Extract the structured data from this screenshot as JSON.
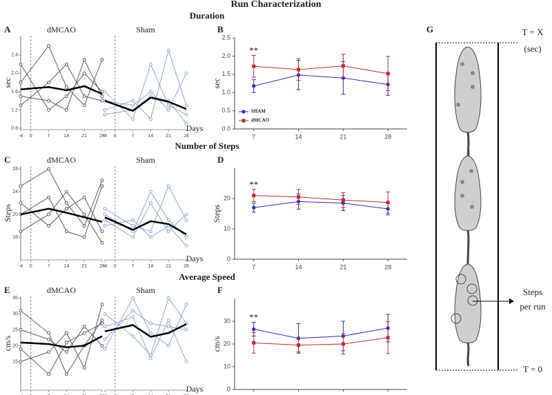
{
  "title": "Run Characterization",
  "sections": [
    "Duration",
    "Number of Steps",
    "Average Speed"
  ],
  "chart_data": [
    {
      "panel": "A",
      "type": "spaghetti",
      "ylabel": "sec",
      "xlabel": "Days",
      "x": [
        -4,
        7,
        14,
        21,
        28
      ],
      "xlim": [
        -4,
        28
      ],
      "xticks": [
        -4,
        0,
        7,
        14,
        21,
        28
      ],
      "ylim": [
        0.77,
        2.82
      ],
      "yticks": [
        0.8,
        1.2,
        1.6,
        {
          "value": 2,
          "label": "2.0"
        },
        2.4
      ],
      "groups": [
        {
          "name": "dMCAO",
          "color": "#5a5a66",
          "mean_color": "#000000",
          "mean": [
            1.65,
            1.7,
            1.63,
            1.72,
            1.55
          ],
          "series": [
            [
              2.2,
              1.2,
              1.5,
              2.0,
              1.6
            ],
            [
              1.8,
              2.6,
              1.7,
              1.3,
              2.3
            ],
            [
              1.3,
              1.8,
              2.2,
              1.5,
              1.4
            ],
            [
              1.5,
              1.4,
              1.2,
              2.3,
              1.5
            ]
          ]
        },
        {
          "name": "Sham",
          "color": "#8ea6d2",
          "mean_color": "#000000",
          "mean": [
            1.4,
            1.18,
            1.47,
            1.38,
            1.22
          ],
          "series": [
            [
              1.6,
              1.0,
              2.2,
              1.3,
              1.1
            ],
            [
              1.2,
              1.4,
              1.0,
              2.5,
              1.3
            ],
            [
              1.4,
              1.3,
              1.6,
              1.2,
              2.0
            ],
            [
              1.1,
              1.2,
              1.5,
              1.4,
              0.9
            ]
          ]
        }
      ]
    },
    {
      "panel": "B",
      "type": "errline",
      "ylabel": "sec",
      "x": [
        7,
        14,
        21,
        28
      ],
      "xlim": [
        4,
        31
      ],
      "xticks": [
        7,
        14,
        21,
        28
      ],
      "ylim": [
        0,
        2.5
      ],
      "yticks": [
        {
          "value": 0,
          "label": "0.0"
        },
        0.5,
        {
          "value": 1,
          "label": "1.0"
        },
        1.5,
        {
          "value": 2,
          "label": "2.0"
        },
        2.5
      ],
      "annotation": {
        "text": "**",
        "x": 7
      },
      "legend": true,
      "series": [
        {
          "name": "SHAM",
          "color": "#2b2bbf",
          "marker": "circle",
          "values": [
            1.18,
            1.48,
            1.4,
            1.22
          ],
          "errors": [
            0.18,
            0.4,
            0.45,
            0.3
          ]
        },
        {
          "name": "dMCAO",
          "color": "#c02a2a",
          "marker": "square",
          "values": [
            1.72,
            1.63,
            1.73,
            1.52
          ],
          "errors": [
            0.3,
            0.3,
            0.32,
            0.47
          ]
        }
      ]
    },
    {
      "panel": "C",
      "type": "spaghetti",
      "ylabel": "Steps",
      "xlabel": "Days",
      "x": [
        -4,
        7,
        14,
        21,
        28
      ],
      "xlim": [
        -4,
        28
      ],
      "xticks": [
        -4,
        0,
        7,
        14,
        21,
        28
      ],
      "ylim": [
        12,
        28.5
      ],
      "yticks": [
        16,
        20,
        24,
        28
      ],
      "groups": [
        {
          "name": "dMCAO",
          "color": "#5a5a66",
          "mean_color": "#000000",
          "mean": [
            20,
            21,
            20.3,
            19.5,
            18.7
          ],
          "series": [
            [
              25,
              28,
              22,
              18,
              26
            ],
            [
              22,
              18,
              21,
              23,
              17
            ],
            [
              20,
              23,
              17,
              16,
              25
            ],
            [
              17,
              20,
              24,
              20,
              15
            ]
          ]
        },
        {
          "name": "Sham",
          "color": "#8ea6d2",
          "mean_color": "#000000",
          "mean": [
            19.5,
            17.3,
            18.8,
            18.3,
            16.5
          ],
          "series": [
            [
              21,
              18,
              17,
              25,
              19
            ],
            [
              19,
              16,
              22,
              17,
              20
            ],
            [
              20,
              17,
              24,
              19,
              16
            ],
            [
              18,
              19,
              16,
              18,
              14.5
            ]
          ]
        }
      ]
    },
    {
      "panel": "D",
      "type": "errline",
      "ylabel": "Steps",
      "x": [
        7,
        14,
        21,
        28
      ],
      "xlim": [
        4,
        31
      ],
      "xticks": [
        7,
        14,
        21,
        28
      ],
      "ylim": [
        0,
        30
      ],
      "yticks": [
        0,
        10,
        20
      ],
      "annotation": {
        "text": "**",
        "x": 7
      },
      "legend": false,
      "series": [
        {
          "name": "SHAM",
          "color": "#2b2bbf",
          "marker": "circle",
          "values": [
            17,
            19,
            18.5,
            16.6
          ],
          "errors": [
            1.5,
            2.5,
            2.5,
            2
          ]
        },
        {
          "name": "dMCAO",
          "color": "#c02a2a",
          "marker": "square",
          "values": [
            21,
            20.5,
            19.5,
            18.7
          ],
          "errors": [
            2,
            2.5,
            2.5,
            3.5
          ]
        }
      ]
    },
    {
      "panel": "E",
      "type": "spaghetti",
      "ylabel": "cm/s",
      "xlabel": "Days",
      "x": [
        -4,
        7,
        14,
        21,
        28
      ],
      "xlim": [
        -4,
        28
      ],
      "xticks": [
        -4,
        0,
        7,
        14,
        21,
        28
      ],
      "ylim": [
        6,
        35.5
      ],
      "yticks": [
        15,
        20,
        25,
        30,
        35
      ],
      "groups": [
        {
          "name": "dMCAO",
          "color": "#5a5a66",
          "mean_color": "#000000",
          "mean": [
            21,
            20.5,
            19.5,
            20,
            23
          ],
          "series": [
            [
              31,
              24,
              11,
              20,
              28
            ],
            [
              15,
              18,
              24,
              13,
              33
            ],
            [
              25,
              22,
              18,
              26,
              20
            ],
            [
              19,
              11,
              21,
              24,
              27
            ]
          ]
        },
        {
          "name": "Sham",
          "color": "#8ea6d2",
          "mean_color": "#000000",
          "mean": [
            24.5,
            26.5,
            22.8,
            24,
            26.8
          ],
          "series": [
            [
              30,
              23,
              17,
              35,
              27
            ],
            [
              19,
              35,
              24,
              20,
              33
            ],
            [
              26,
              29,
              16,
              28,
              15
            ],
            [
              22,
              31,
              27,
              26,
              25
            ]
          ]
        }
      ]
    },
    {
      "panel": "F",
      "type": "errline",
      "ylabel": "cm/s",
      "x": [
        7,
        14,
        21,
        28
      ],
      "xlim": [
        4,
        31
      ],
      "xticks": [
        7,
        14,
        21,
        28
      ],
      "ylim": [
        0,
        40
      ],
      "yticks": [
        0,
        10,
        20,
        30
      ],
      "annotation": {
        "text": "**",
        "x": 7
      },
      "legend": false,
      "series": [
        {
          "name": "SHAM",
          "color": "#2b2bbf",
          "marker": "circle",
          "values": [
            26.5,
            22.5,
            23.5,
            27
          ],
          "errors": [
            3,
            6.5,
            6.5,
            6
          ]
        },
        {
          "name": "dMCAO",
          "color": "#c02a2a",
          "marker": "square",
          "values": [
            20.5,
            19.5,
            20,
            22.8
          ],
          "errors": [
            4.5,
            3,
            4.5,
            7
          ]
        }
      ]
    }
  ],
  "diagram": {
    "panel": "G",
    "labels": {
      "top": "T = X",
      "top_unit": "(sec)",
      "steps": "Steps",
      "steps_unit": "per run",
      "bottom": "T = 0"
    }
  }
}
